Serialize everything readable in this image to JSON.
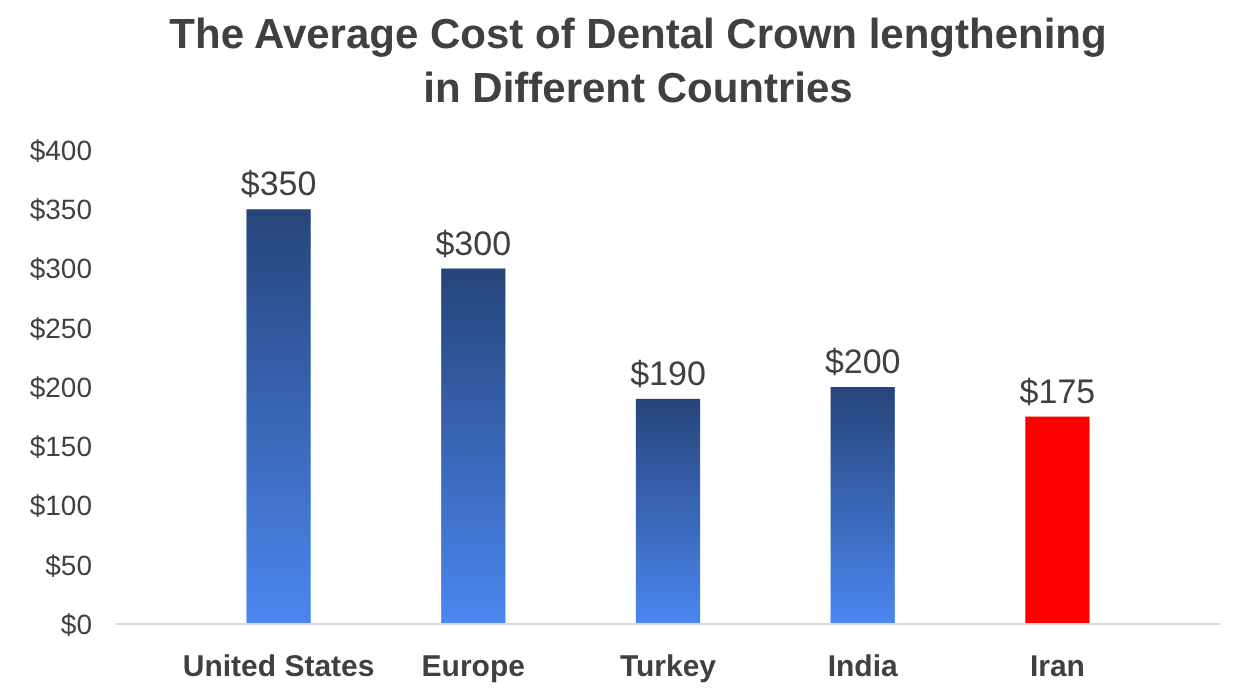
{
  "chart_data": {
    "type": "bar",
    "title": "The Average Cost of Dental Crown lengthening in Different Countries",
    "categories": [
      "United States",
      "Europe",
      "Turkey",
      "India",
      "Iran"
    ],
    "values": [
      350,
      300,
      190,
      200,
      175
    ],
    "colors": [
      "#2f5597",
      "#2f5597",
      "#2f5597",
      "#2f5597",
      "#ff0000"
    ],
    "value_labels": [
      "$350",
      "$300",
      "$190",
      "$200",
      "$175"
    ],
    "ylim": [
      0,
      400
    ],
    "yticks": [
      {
        "value": 0,
        "label": "$0"
      },
      {
        "value": 50,
        "label": "$50"
      },
      {
        "value": 100,
        "label": "$100"
      },
      {
        "value": 150,
        "label": "$150"
      },
      {
        "value": 200,
        "label": "$200"
      },
      {
        "value": 250,
        "label": "$250"
      },
      {
        "value": 300,
        "label": "$300"
      },
      {
        "value": 350,
        "label": "$350"
      },
      {
        "value": 400,
        "label": "$400"
      }
    ],
    "grid": false
  }
}
